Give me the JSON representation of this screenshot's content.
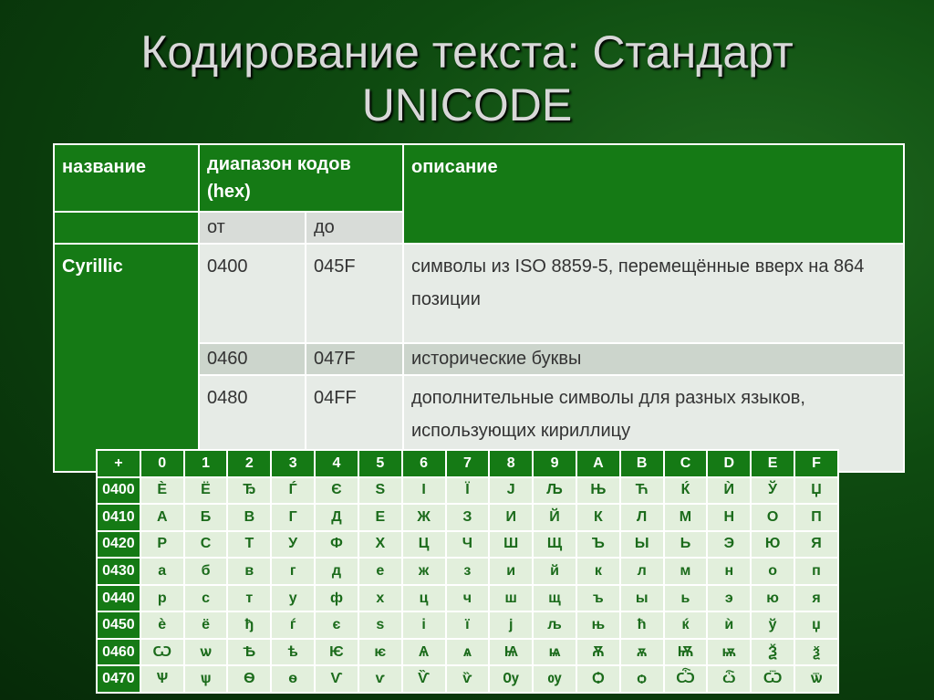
{
  "title": {
    "lines": [
      "Кодирование текста: Стандарт",
      "UNICODE"
    ]
  },
  "range_table": {
    "headers": {
      "name": "название",
      "range": "диапазон кодов (hex)",
      "from": "от",
      "to": "до",
      "description": "описание"
    },
    "block_name": "Cyrillic",
    "rows": [
      [
        "0400",
        "045F",
        "символы из ISO 8859-5, перемещённые вверх на 864 позиции"
      ],
      [
        "0460",
        "047F",
        "исторические буквы"
      ],
      [
        "0480",
        "04FF",
        "дополнительные символы для разных языков, использующих кириллицу"
      ]
    ]
  },
  "code_table": {
    "corner": "+",
    "columns": [
      "0",
      "1",
      "2",
      "3",
      "4",
      "5",
      "6",
      "7",
      "8",
      "9",
      "A",
      "B",
      "C",
      "D",
      "E",
      "F"
    ],
    "rows": [
      {
        "code": "0400",
        "chars": [
          "Ѐ",
          "Ё",
          "Ђ",
          "Ѓ",
          "Є",
          "Ѕ",
          "І",
          "Ї",
          "Ј",
          "Љ",
          "Њ",
          "Ћ",
          "Ќ",
          "Ѝ",
          "Ў",
          "Џ"
        ]
      },
      {
        "code": "0410",
        "chars": [
          "А",
          "Б",
          "В",
          "Г",
          "Д",
          "Е",
          "Ж",
          "З",
          "И",
          "Й",
          "К",
          "Л",
          "М",
          "Н",
          "О",
          "П"
        ]
      },
      {
        "code": "0420",
        "chars": [
          "Р",
          "С",
          "Т",
          "У",
          "Ф",
          "Х",
          "Ц",
          "Ч",
          "Ш",
          "Щ",
          "Ъ",
          "Ы",
          "Ь",
          "Э",
          "Ю",
          "Я"
        ]
      },
      {
        "code": "0430",
        "chars": [
          "а",
          "б",
          "в",
          "г",
          "д",
          "е",
          "ж",
          "з",
          "и",
          "й",
          "к",
          "л",
          "м",
          "н",
          "о",
          "п"
        ]
      },
      {
        "code": "0440",
        "chars": [
          "р",
          "с",
          "т",
          "у",
          "ф",
          "х",
          "ц",
          "ч",
          "ш",
          "щ",
          "ъ",
          "ы",
          "ь",
          "э",
          "ю",
          "я"
        ]
      },
      {
        "code": "0450",
        "chars": [
          "ѐ",
          "ё",
          "ђ",
          "ѓ",
          "є",
          "ѕ",
          "і",
          "ї",
          "ј",
          "љ",
          "њ",
          "ћ",
          "ќ",
          "ѝ",
          "ў",
          "џ"
        ]
      },
      {
        "code": "0460",
        "chars": [
          "Ѡ",
          "ѡ",
          "Ѣ",
          "ѣ",
          "Ѥ",
          "ѥ",
          "Ѧ",
          "ѧ",
          "Ѩ",
          "ѩ",
          "Ѫ",
          "ѫ",
          "Ѭ",
          "ѭ",
          "Ѯ",
          "ѯ"
        ]
      },
      {
        "code": "0470",
        "chars": [
          "Ѱ",
          "ѱ",
          "Ѳ",
          "ѳ",
          "Ѵ",
          "ѵ",
          "Ѷ",
          "ѷ",
          "Ѹ",
          "ѹ",
          "Ѻ",
          "ѻ",
          "Ѽ",
          "ѽ",
          "Ѿ",
          "ѿ"
        ]
      }
    ]
  }
}
